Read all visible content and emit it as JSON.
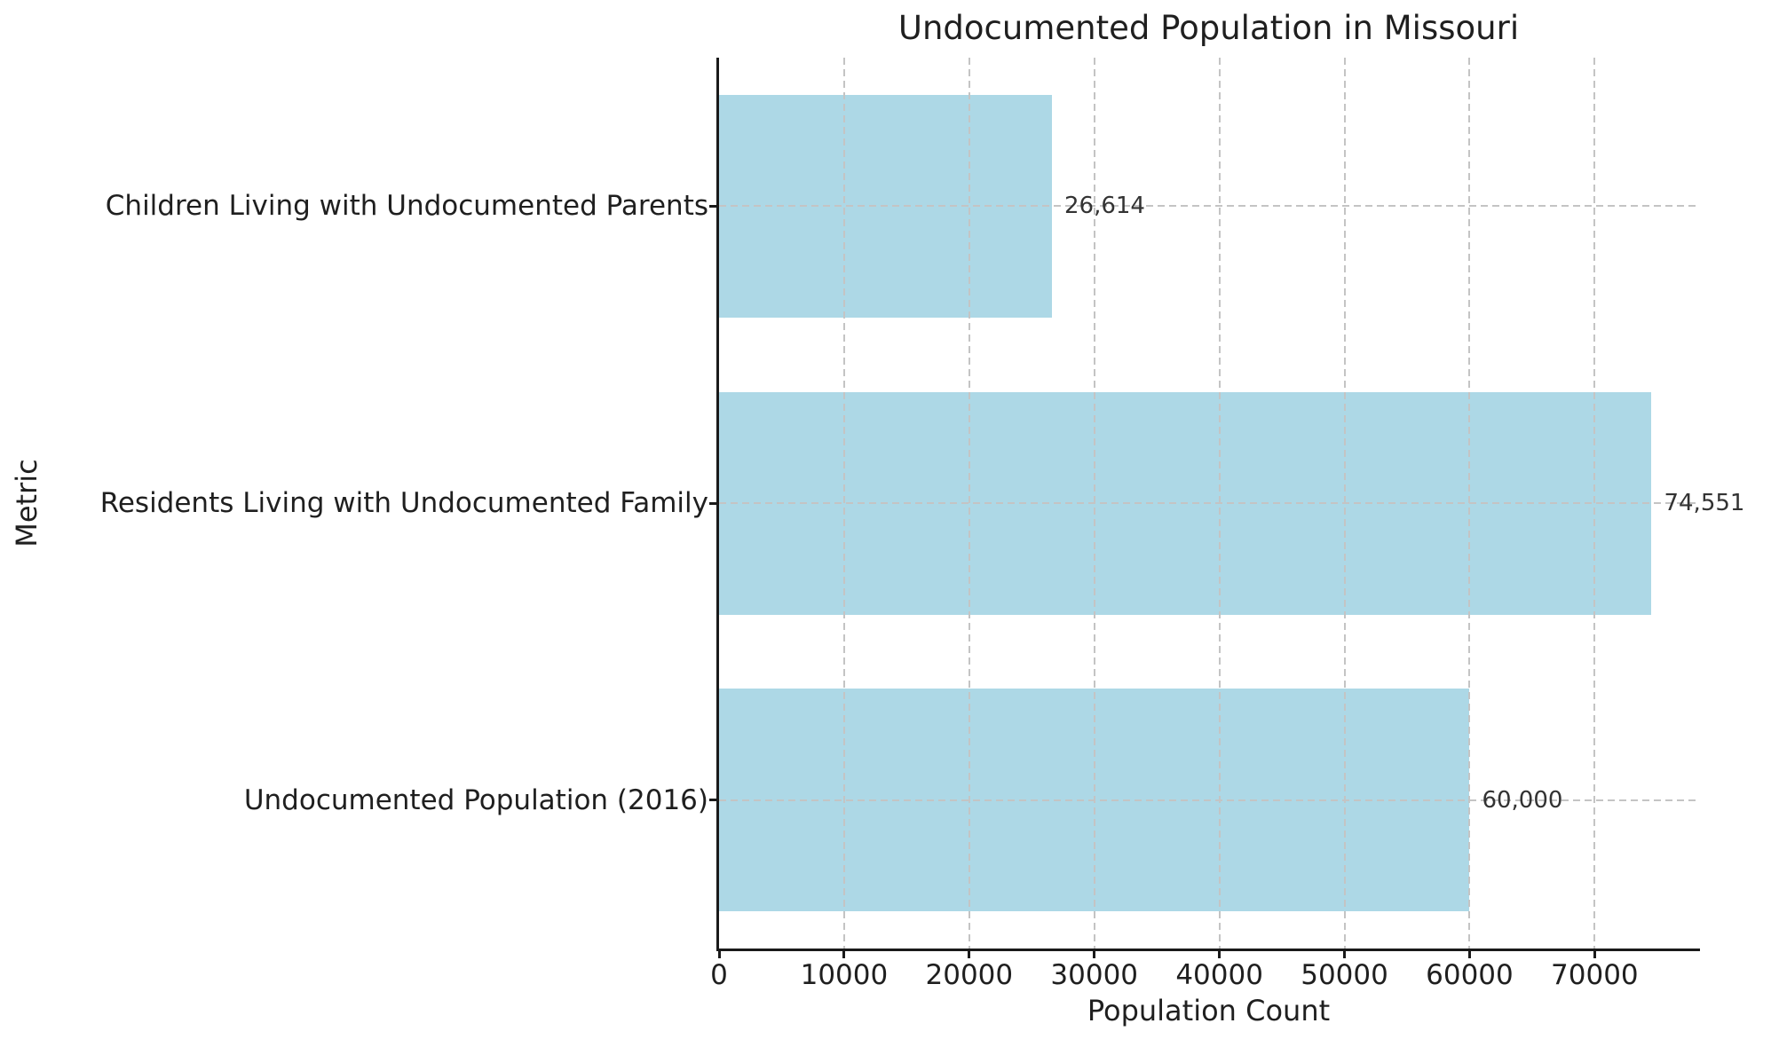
{
  "chart_data": {
    "type": "bar",
    "orientation": "horizontal",
    "title": "Undocumented Population in Missouri",
    "xlabel": "Population Count",
    "ylabel": "Metric",
    "categories": [
      "Children Living with Undocumented Parents",
      "Residents Living with Undocumented Family",
      "Undocumented Population (2016)"
    ],
    "values": [
      26614,
      74551,
      60000
    ],
    "value_labels": [
      "26,614",
      "74,551",
      "60,000"
    ],
    "xlim": [
      0,
      78279
    ],
    "xticks": [
      0,
      10000,
      20000,
      30000,
      40000,
      50000,
      60000,
      70000
    ],
    "xtick_labels": [
      "0",
      "10000",
      "20000",
      "30000",
      "40000",
      "50000",
      "60000",
      "70000"
    ],
    "bar_color": "#ADD8E6",
    "grid": true,
    "grid_style": "dashed",
    "grid_color": "#c4c4c4",
    "axis_color": "#1a1a1a",
    "text_color": "#1f1f1f",
    "value_label_color": "#333333",
    "background": "#ffffff",
    "legend": null
  }
}
